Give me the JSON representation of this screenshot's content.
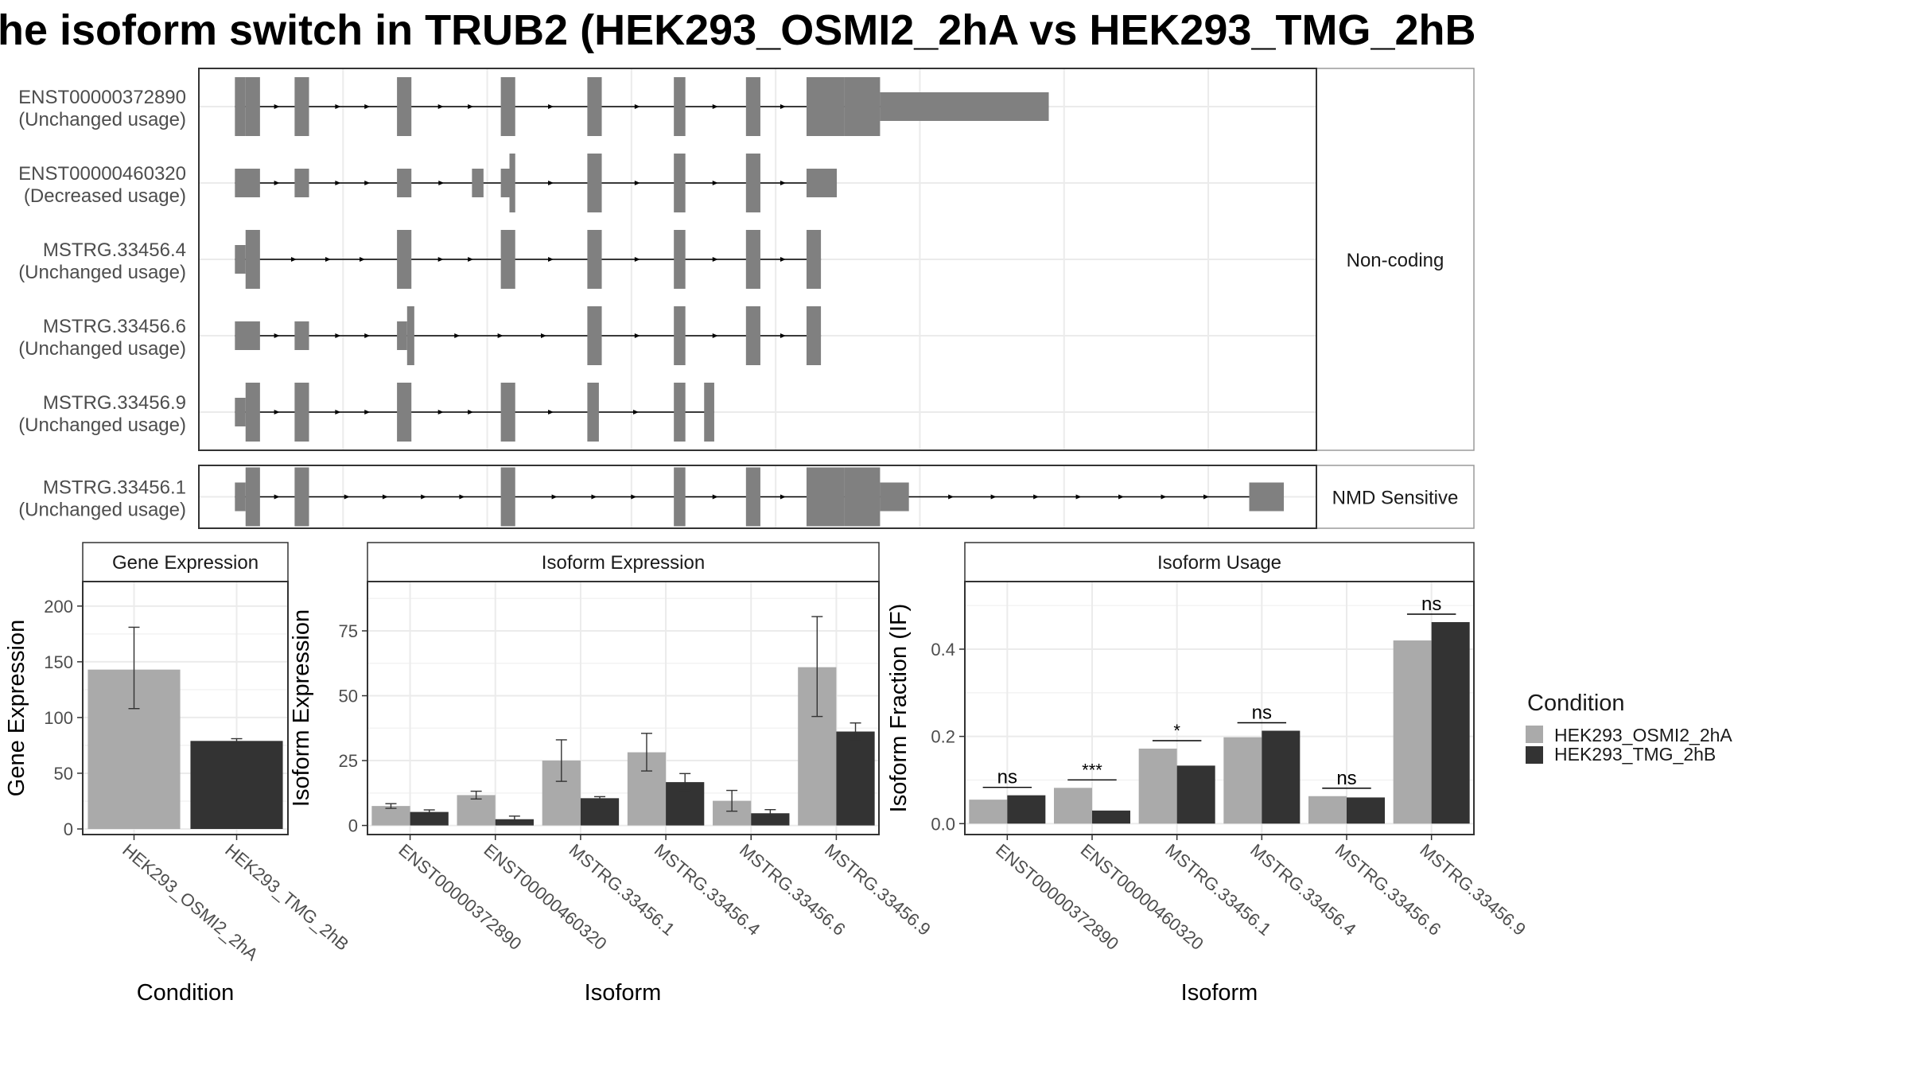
{
  "title": "he isoform switch in TRUB2 (HEK293_OSMI2_2hA vs HEK293_TMG_2hB",
  "colors": {
    "exon": "#808080",
    "cond1": "#AAAAAA",
    "cond2": "#333333",
    "grid": "#EBEBEB",
    "panel_border": "#333333",
    "strip_border": "#9A9A9A",
    "text": "#1A1A1A"
  },
  "transcripts": {
    "facets": [
      {
        "label": "Non-coding",
        "rows": [
          {
            "id": "ENST00000372890",
            "usage": "(Unchanged usage)",
            "exons": [
              [
                0.0,
                0.74
              ],
              [
                0.74,
                1.74
              ],
              [
                4.14,
                5.14
              ],
              [
                11.24,
                12.24
              ],
              [
                18.44,
                19.44
              ],
              [
                24.44,
                25.44
              ],
              [
                30.44,
                31.24
              ],
              [
                35.44,
                36.44
              ],
              [
                39.64,
                42.24
              ],
              [
                42.24,
                44.74
              ],
              [
                44.74,
                56.44
              ]
            ],
            "coding": [
              1,
              1,
              1,
              1,
              1,
              1,
              1,
              1,
              1,
              1,
              0
            ]
          },
          {
            "id": "ENST00000460320",
            "usage": "(Decreased usage)",
            "exons": [
              [
                0.0,
                1.74
              ],
              [
                4.14,
                5.14
              ],
              [
                11.24,
                12.24
              ],
              [
                16.44,
                17.24
              ],
              [
                18.44,
                19.04
              ],
              [
                19.04,
                19.44
              ],
              [
                24.44,
                25.44
              ],
              [
                30.44,
                31.24
              ],
              [
                35.44,
                36.44
              ],
              [
                39.64,
                41.74
              ]
            ],
            "coding": [
              0,
              0,
              0,
              0,
              0,
              1,
              1,
              1,
              1,
              0
            ]
          },
          {
            "id": "MSTRG.33456.4",
            "usage": "(Unchanged usage)",
            "exons": [
              [
                0.0,
                0.74
              ],
              [
                0.74,
                1.74
              ],
              [
                11.24,
                12.24
              ],
              [
                18.44,
                19.44
              ],
              [
                24.44,
                25.44
              ],
              [
                30.44,
                31.24
              ],
              [
                35.44,
                36.44
              ],
              [
                39.64,
                40.64
              ]
            ],
            "coding": [
              0,
              1,
              1,
              1,
              1,
              1,
              1,
              1
            ]
          },
          {
            "id": "MSTRG.33456.6",
            "usage": "(Unchanged usage)",
            "exons": [
              [
                0.0,
                1.74
              ],
              [
                4.14,
                5.14
              ],
              [
                11.24,
                11.94
              ],
              [
                11.94,
                12.44
              ],
              [
                24.44,
                25.44
              ],
              [
                30.44,
                31.24
              ],
              [
                35.44,
                36.44
              ],
              [
                39.64,
                40.64
              ]
            ],
            "coding": [
              0,
              0,
              0,
              1,
              1,
              1,
              1,
              1
            ]
          },
          {
            "id": "MSTRG.33456.9",
            "usage": "(Unchanged usage)",
            "exons": [
              [
                0.0,
                0.74
              ],
              [
                0.74,
                1.74
              ],
              [
                4.14,
                5.14
              ],
              [
                11.24,
                12.24
              ],
              [
                18.44,
                19.44
              ],
              [
                24.44,
                25.24
              ],
              [
                30.44,
                31.24
              ],
              [
                32.54,
                33.24
              ]
            ],
            "coding": [
              0,
              1,
              1,
              1,
              1,
              1,
              1,
              1
            ]
          }
        ]
      },
      {
        "label": "NMD Sensitive",
        "rows": [
          {
            "id": "MSTRG.33456.1",
            "usage": "(Unchanged usage)",
            "exons": [
              [
                0.0,
                0.74
              ],
              [
                0.74,
                1.74
              ],
              [
                4.14,
                5.14
              ],
              [
                18.44,
                19.44
              ],
              [
                30.44,
                31.24
              ],
              [
                35.44,
                36.44
              ],
              [
                39.64,
                42.24
              ],
              [
                42.24,
                44.74
              ],
              [
                44.74,
                46.74
              ],
              [
                70.34,
                72.74
              ]
            ],
            "coding": [
              0,
              1,
              1,
              1,
              1,
              1,
              1,
              1,
              0,
              0
            ]
          }
        ]
      }
    ]
  },
  "chart_data": [
    {
      "type": "bar",
      "strip": "Gene Expression",
      "xlabel": "Condition",
      "ylabel": "Gene Expression",
      "categories": [
        "HEK293_OSMI2_2hA",
        "HEK293_TMG_2hB"
      ],
      "values": [
        143,
        79
      ],
      "errors": [
        [
          108,
          181
        ],
        [
          77,
          81
        ]
      ],
      "ylim": [
        -5,
        222
      ],
      "yticks": [
        0,
        50,
        100,
        150,
        200
      ],
      "grid": true
    },
    {
      "type": "bar",
      "strip": "Isoform Expression",
      "xlabel": "Isoform",
      "ylabel": "Isoform Expression",
      "categories": [
        "ENST00000372890",
        "ENST00000460320",
        "MSTRG.33456.1",
        "MSTRG.33456.4",
        "MSTRG.33456.6",
        "MSTRG.33456.9"
      ],
      "series": [
        {
          "name": "HEK293_OSMI2_2hA",
          "values": [
            7.5,
            11.7,
            25,
            28.2,
            9.5,
            61
          ],
          "errors": [
            [
              6.6,
              8.4
            ],
            [
              10.2,
              13.2
            ],
            [
              17,
              33
            ],
            [
              21,
              35.5
            ],
            [
              5.5,
              13.5
            ],
            [
              42,
              80.5
            ]
          ]
        },
        {
          "name": "HEK293_TMG_2hB",
          "values": [
            5.2,
            2.4,
            10.5,
            16.7,
            4.7,
            36.2
          ],
          "errors": [
            [
              4.4,
              6.0
            ],
            [
              1.2,
              3.6
            ],
            [
              9.9,
              11.1
            ],
            [
              13.5,
              20
            ],
            [
              3.3,
              6.1
            ],
            [
              33,
              39.5
            ]
          ]
        }
      ],
      "ylim": [
        -3.5,
        94
      ],
      "yticks": [
        0,
        25,
        50,
        75
      ],
      "grid": true
    },
    {
      "type": "bar",
      "strip": "Isoform Usage",
      "xlabel": "Isoform",
      "ylabel": "Isoform Fraction (IF)",
      "categories": [
        "ENST00000372890",
        "ENST00000460320",
        "MSTRG.33456.1",
        "MSTRG.33456.4",
        "MSTRG.33456.6",
        "MSTRG.33456.9"
      ],
      "series": [
        {
          "name": "HEK293_OSMI2_2hA",
          "values": [
            0.055,
            0.082,
            0.172,
            0.198,
            0.063,
            0.42
          ]
        },
        {
          "name": "HEK293_TMG_2hB",
          "values": [
            0.065,
            0.03,
            0.133,
            0.213,
            0.06,
            0.462
          ]
        }
      ],
      "significance": [
        "ns",
        "***",
        "*",
        "ns",
        "ns",
        "ns"
      ],
      "ylim": [
        -0.025,
        0.555
      ],
      "yticks": [
        "0.0",
        "0.2",
        "0.4"
      ],
      "grid": true
    }
  ],
  "legend": {
    "title": "Condition",
    "entries": [
      "HEK293_OSMI2_2hA",
      "HEK293_TMG_2hB"
    ],
    "placement": "right"
  }
}
